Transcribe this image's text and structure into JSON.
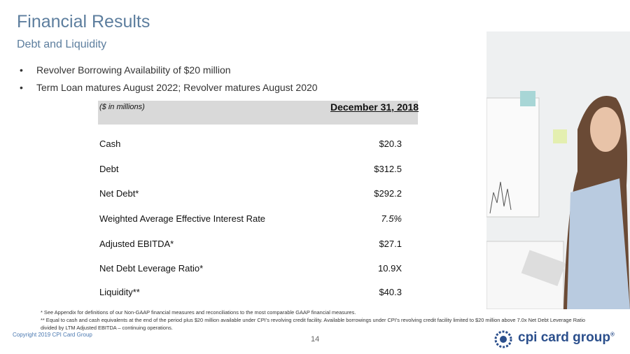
{
  "header": {
    "title": "Financial Results",
    "subtitle": "Debt and Liquidity"
  },
  "bullets": [
    "Revolver Borrowing Availability of $20 million",
    "Term Loan matures August 2022; Revolver matures August 2020"
  ],
  "table": {
    "columns": [
      "($ in millions)",
      "December 31, 2018"
    ],
    "rows": [
      [
        "Cash",
        "$20.3"
      ],
      [
        "Debt",
        "$312.5"
      ],
      [
        "Net Debt*",
        "$292.2"
      ],
      [
        "Weighted Average Effective Interest Rate",
        "7.5%"
      ],
      [
        "Adjusted EBITDA*",
        "$27.1"
      ],
      [
        "Net Debt Leverage Ratio*",
        "10.9X"
      ],
      [
        "Liquidity**",
        "$40.3"
      ]
    ]
  },
  "footnotes": [
    "* See Appendix for definitions of our Non-GAAP financial measures and reconciliations to the most comparable GAAP financial measures.",
    "** Equal to cash and cash equivalents at the end of the period plus $20 million available under CPI’s revolving credit facility. Available borrowings under CPI’s revolving credit facility limited to $20 million above 7.0x Net Debt Leverage Ratio divided by LTM Adjusted EBITDA – continuing operations."
  ],
  "footer": {
    "copyright": "Copyright 2019 CPI Card Group",
    "page_number": "14",
    "logo": "cpi card group",
    "logo_mark": "®"
  }
}
